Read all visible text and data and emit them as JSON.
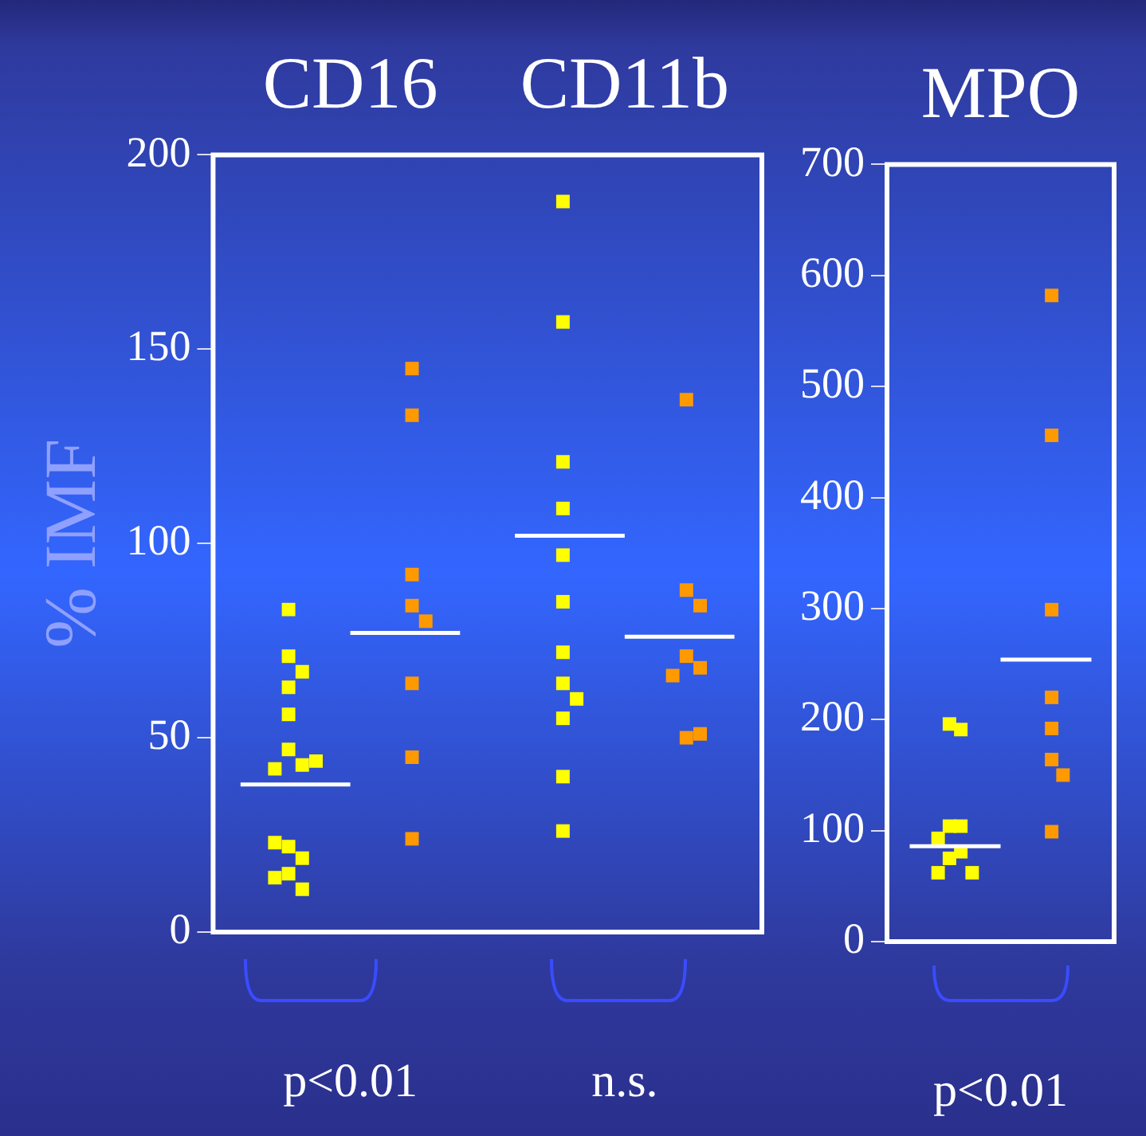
{
  "chart_data": [
    {
      "type": "scatter",
      "ylabel": "% IMF",
      "marker": "square",
      "categories": [
        "CD16",
        "CD11b"
      ],
      "ylim": [
        0,
        200
      ],
      "yticks": [
        0,
        50,
        100,
        150,
        200
      ],
      "annotations": [
        "p<0.01",
        "n.s."
      ],
      "series": [
        {
          "color": "#ffff00",
          "x": [
            "CD16",
            "CD16",
            "CD16",
            "CD16",
            "CD16",
            "CD16",
            "CD16",
            "CD16",
            "CD16",
            "CD16",
            "CD16",
            "CD16",
            "CD16",
            "CD16",
            "CD16",
            "CD11b",
            "CD11b",
            "CD11b",
            "CD11b",
            "CD11b",
            "CD11b",
            "CD11b",
            "CD11b",
            "CD11b",
            "CD11b",
            "CD11b",
            "CD11b"
          ],
          "values": [
            83,
            71,
            67,
            63,
            56,
            47,
            43,
            42,
            44,
            22,
            19,
            23,
            15,
            11,
            14,
            188,
            157,
            121,
            109,
            97,
            85,
            72,
            64,
            60,
            55,
            40,
            26
          ]
        },
        {
          "color": "#ff9900",
          "x": [
            "CD16",
            "CD16",
            "CD16",
            "CD16",
            "CD16",
            "CD16",
            "CD16",
            "CD16",
            "CD11b",
            "CD11b",
            "CD11b",
            "CD11b",
            "CD11b",
            "CD11b",
            "CD11b",
            "CD11b"
          ],
          "values": [
            145,
            133,
            92,
            84,
            80,
            64,
            45,
            24,
            137,
            88,
            84,
            71,
            68,
            66,
            50,
            51
          ]
        }
      ],
      "ref_lines": [
        {
          "axis": "y",
          "value": 38,
          "color": "#ffffff"
        },
        {
          "axis": "y",
          "value": 77,
          "color": "#ffffff"
        },
        {
          "axis": "y",
          "value": 102,
          "color": "#ffffff"
        },
        {
          "axis": "y",
          "value": 76,
          "color": "#ffffff"
        }
      ]
    },
    {
      "type": "scatter",
      "marker": "square",
      "categories": [
        "MPO"
      ],
      "ylim": [
        0,
        700
      ],
      "yticks": [
        0,
        100,
        200,
        300,
        400,
        500,
        600,
        700
      ],
      "annotations": [
        "p<0.01"
      ],
      "series": [
        {
          "color": "#ffff00",
          "x": [
            "MPO",
            "MPO",
            "MPO",
            "MPO",
            "MPO",
            "MPO",
            "MPO",
            "MPO",
            "MPO"
          ],
          "values": [
            196,
            191,
            104,
            104,
            93,
            75,
            81,
            62,
            62
          ]
        },
        {
          "color": "#ff9900",
          "x": [
            "MPO",
            "MPO",
            "MPO",
            "MPO",
            "MPO",
            "MPO",
            "MPO",
            "MPO"
          ],
          "values": [
            582,
            456,
            299,
            220,
            192,
            164,
            150,
            99
          ]
        }
      ],
      "ref_lines": [
        {
          "axis": "y",
          "value": 86,
          "color": "#ffffff"
        },
        {
          "axis": "y",
          "value": 254,
          "color": "#ffffff"
        }
      ]
    }
  ]
}
